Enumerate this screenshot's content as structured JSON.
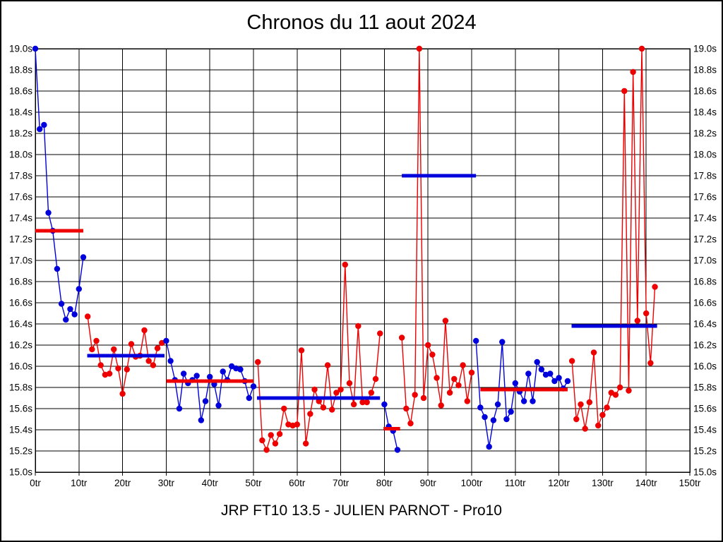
{
  "colors": {
    "blue": "#0000dd",
    "red": "#ee0000",
    "grid": "#000000",
    "background": "#ffffff"
  },
  "chart_data": {
    "type": "line",
    "title": "Chronos du 11 aout 2024",
    "subtitle": "JRP FT10 13.5 - JULIEN PARNOT - Pro10",
    "xlabel": "",
    "ylabel": "",
    "x_unit": "tr",
    "y_unit": "s",
    "xlim": [
      0,
      150
    ],
    "ylim": [
      15.0,
      19.0
    ],
    "x_tick_step": 10,
    "y_tick_step": 0.2,
    "grid": true,
    "x_tick_labels": [
      "0tr",
      "10tr",
      "20tr",
      "30tr",
      "40tr",
      "50tr",
      "60tr",
      "70tr",
      "80tr",
      "90tr",
      "100tr",
      "110tr",
      "120tr",
      "130tr",
      "140tr",
      "150tr"
    ],
    "y_tick_labels": [
      "15.0s",
      "15.2s",
      "15.4s",
      "15.6s",
      "15.8s",
      "16.0s",
      "16.2s",
      "16.4s",
      "16.6s",
      "16.8s",
      "17.0s",
      "17.2s",
      "17.4s",
      "17.6s",
      "17.8s",
      "18.0s",
      "18.2s",
      "18.4s",
      "18.6s",
      "18.8s",
      "19.0s"
    ],
    "segments": [
      {
        "name": "segment-1",
        "color": "blue",
        "start": 0,
        "values": [
          19.0,
          18.24,
          18.28,
          17.45,
          17.28,
          16.92,
          16.59,
          16.44,
          16.54,
          16.49,
          16.73,
          17.03
        ]
      },
      {
        "name": "segment-2",
        "color": "red",
        "start": 12,
        "values": [
          16.47,
          16.16,
          16.24,
          16.01,
          15.92,
          15.93,
          16.16,
          15.98,
          15.74,
          15.97,
          16.21,
          16.09,
          16.1,
          16.34,
          16.05,
          16.01,
          16.17,
          16.22
        ]
      },
      {
        "name": "segment-3",
        "color": "blue",
        "start": 30,
        "values": [
          16.24,
          16.05,
          15.87,
          15.6,
          15.93,
          15.84,
          15.87,
          15.91,
          15.49,
          15.67,
          15.9,
          15.83,
          15.63,
          15.95,
          15.87,
          16.0,
          15.98,
          15.97,
          15.86,
          15.7,
          15.81
        ]
      },
      {
        "name": "segment-4",
        "color": "red",
        "start": 51,
        "values": [
          16.04,
          15.3,
          15.21,
          15.35,
          15.27,
          15.36,
          15.6,
          15.45,
          15.44,
          15.45,
          16.15,
          15.27,
          15.55,
          15.78,
          15.67,
          15.61,
          16.01,
          15.59,
          15.75,
          15.78,
          16.96,
          15.84,
          15.64,
          16.38,
          15.66,
          15.66,
          15.75,
          15.88,
          16.31
        ]
      },
      {
        "name": "segment-5",
        "color": "blue",
        "start": 80,
        "values": [
          15.64,
          15.43,
          15.39,
          15.21
        ]
      },
      {
        "name": "segment-6",
        "color": "red",
        "start": 84,
        "values": [
          16.27,
          15.6,
          15.46,
          15.73,
          19.0,
          15.7,
          16.2,
          16.11,
          15.89,
          15.63,
          16.43,
          15.75,
          15.88,
          15.82,
          16.01,
          15.67,
          15.94
        ]
      },
      {
        "name": "segment-7",
        "color": "blue",
        "start": 101,
        "values": [
          16.24,
          15.61,
          15.52,
          15.24,
          15.49,
          15.64,
          16.23,
          15.5,
          15.57,
          15.84,
          15.76,
          15.67,
          15.93,
          15.67,
          16.04,
          15.97,
          15.92,
          15.93,
          15.86,
          15.89,
          15.79,
          15.86
        ]
      },
      {
        "name": "segment-8",
        "color": "red",
        "start": 123,
        "values": [
          16.05,
          15.5,
          15.64,
          15.41,
          15.66,
          16.13,
          15.44,
          15.54,
          15.61,
          15.75,
          15.73,
          15.8,
          18.6,
          15.77,
          18.78,
          16.43,
          19.0,
          16.5,
          16.03,
          16.75
        ]
      }
    ],
    "mean_lines": [
      {
        "name": "mean-1",
        "color": "red",
        "value": 17.28,
        "from": 0.0,
        "to": 11.0
      },
      {
        "name": "mean-2",
        "color": "blue",
        "value": 16.1,
        "from": 11.9,
        "to": 29.6
      },
      {
        "name": "mean-3",
        "color": "red",
        "value": 15.86,
        "from": 30.0,
        "to": 50.0
      },
      {
        "name": "mean-4",
        "color": "blue",
        "value": 15.7,
        "from": 50.8,
        "to": 79.0
      },
      {
        "name": "mean-5",
        "color": "red",
        "value": 15.41,
        "from": 79.8,
        "to": 83.6
      },
      {
        "name": "mean-6",
        "color": "blue",
        "value": 17.8,
        "from": 84.0,
        "to": 101.0
      },
      {
        "name": "mean-7",
        "color": "red",
        "value": 15.78,
        "from": 102.0,
        "to": 122.0
      },
      {
        "name": "mean-8",
        "color": "blue",
        "value": 16.38,
        "from": 122.9,
        "to": 142.5
      }
    ],
    "legend": null
  }
}
